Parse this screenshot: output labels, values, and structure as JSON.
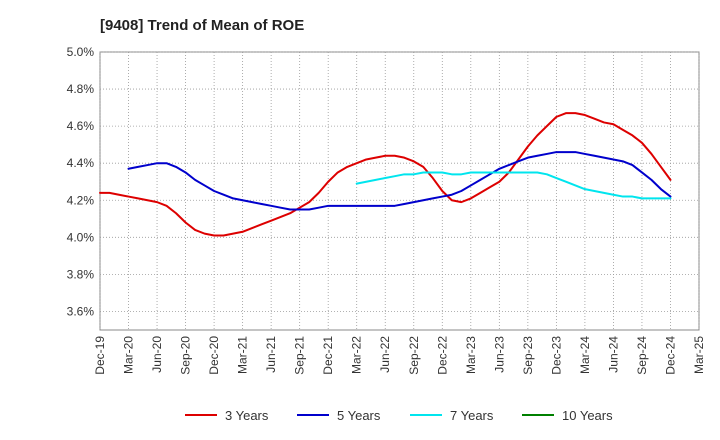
{
  "chart_data": {
    "type": "line",
    "title": "[9408]  Trend of Mean of ROE",
    "xlabel": "",
    "ylabel": "",
    "x_tick_labels": [
      "Dec-19",
      "Mar-20",
      "Jun-20",
      "Sep-20",
      "Dec-20",
      "Mar-21",
      "Jun-21",
      "Sep-21",
      "Dec-21",
      "Mar-22",
      "Jun-22",
      "Sep-22",
      "Dec-22",
      "Mar-23",
      "Jun-23",
      "Sep-23",
      "Dec-23",
      "Mar-24",
      "Jun-24",
      "Sep-24",
      "Dec-24",
      "Mar-25"
    ],
    "y_tick_labels": [
      "3.6%",
      "3.8%",
      "4.0%",
      "4.2%",
      "4.4%",
      "4.6%",
      "4.8%",
      "5.0%"
    ],
    "ylim": [
      3.5,
      5.0
    ],
    "y_unit": "%",
    "grid": true,
    "legend_position": "bottom",
    "series": [
      {
        "name": "3 Years",
        "color": "#dd0000",
        "x": [
          "Dec-19",
          "Jan-20",
          "Feb-20",
          "Mar-20",
          "Apr-20",
          "May-20",
          "Jun-20",
          "Jul-20",
          "Aug-20",
          "Sep-20",
          "Oct-20",
          "Nov-20",
          "Dec-20",
          "Jan-21",
          "Feb-21",
          "Mar-21",
          "Apr-21",
          "May-21",
          "Jun-21",
          "Jul-21",
          "Aug-21",
          "Sep-21",
          "Oct-21",
          "Nov-21",
          "Dec-21",
          "Jan-22",
          "Feb-22",
          "Mar-22",
          "Apr-22",
          "May-22",
          "Jun-22",
          "Jul-22",
          "Aug-22",
          "Sep-22",
          "Oct-22",
          "Nov-22",
          "Dec-22",
          "Jan-23",
          "Feb-23",
          "Mar-23",
          "Apr-23",
          "May-23",
          "Jun-23",
          "Jul-23",
          "Aug-23",
          "Sep-23",
          "Oct-23",
          "Nov-23",
          "Dec-23",
          "Jan-24",
          "Feb-24",
          "Mar-24",
          "Apr-24",
          "May-24",
          "Jun-24",
          "Jul-24",
          "Aug-24",
          "Sep-24",
          "Oct-24",
          "Nov-24",
          "Dec-24"
        ],
        "values": [
          4.24,
          4.24,
          4.23,
          4.22,
          4.21,
          4.2,
          4.19,
          4.17,
          4.13,
          4.08,
          4.04,
          4.02,
          4.01,
          4.01,
          4.02,
          4.03,
          4.05,
          4.07,
          4.09,
          4.11,
          4.13,
          4.16,
          4.19,
          4.24,
          4.3,
          4.35,
          4.38,
          4.4,
          4.42,
          4.43,
          4.44,
          4.44,
          4.43,
          4.41,
          4.38,
          4.32,
          4.25,
          4.2,
          4.19,
          4.21,
          4.24,
          4.27,
          4.3,
          4.35,
          4.42,
          4.49,
          4.55,
          4.6,
          4.65,
          4.67,
          4.67,
          4.66,
          4.64,
          4.62,
          4.61,
          4.58,
          4.55,
          4.51,
          4.45,
          4.38,
          4.31
        ]
      },
      {
        "name": "5 Years",
        "color": "#0000cc",
        "x": [
          "Mar-20",
          "Apr-20",
          "May-20",
          "Jun-20",
          "Jul-20",
          "Aug-20",
          "Sep-20",
          "Oct-20",
          "Nov-20",
          "Dec-20",
          "Jan-21",
          "Feb-21",
          "Mar-21",
          "Apr-21",
          "May-21",
          "Jun-21",
          "Jul-21",
          "Aug-21",
          "Sep-21",
          "Oct-21",
          "Nov-21",
          "Dec-21",
          "Jan-22",
          "Feb-22",
          "Mar-22",
          "Apr-22",
          "May-22",
          "Jun-22",
          "Jul-22",
          "Aug-22",
          "Sep-22",
          "Oct-22",
          "Nov-22",
          "Dec-22",
          "Jan-23",
          "Feb-23",
          "Mar-23",
          "Apr-23",
          "May-23",
          "Jun-23",
          "Jul-23",
          "Aug-23",
          "Sep-23",
          "Oct-23",
          "Nov-23",
          "Dec-23",
          "Jan-24",
          "Feb-24",
          "Mar-24",
          "Apr-24",
          "May-24",
          "Jun-24",
          "Jul-24",
          "Aug-24",
          "Sep-24",
          "Oct-24",
          "Nov-24",
          "Dec-24"
        ],
        "values": [
          4.37,
          4.38,
          4.39,
          4.4,
          4.4,
          4.38,
          4.35,
          4.31,
          4.28,
          4.25,
          4.23,
          4.21,
          4.2,
          4.19,
          4.18,
          4.17,
          4.16,
          4.15,
          4.15,
          4.15,
          4.16,
          4.17,
          4.17,
          4.17,
          4.17,
          4.17,
          4.17,
          4.17,
          4.17,
          4.18,
          4.19,
          4.2,
          4.21,
          4.22,
          4.23,
          4.25,
          4.28,
          4.31,
          4.34,
          4.37,
          4.39,
          4.41,
          4.43,
          4.44,
          4.45,
          4.46,
          4.46,
          4.46,
          4.45,
          4.44,
          4.43,
          4.42,
          4.41,
          4.39,
          4.35,
          4.31,
          4.26,
          4.22
        ]
      },
      {
        "name": "7 Years",
        "color": "#00e5ee",
        "x": [
          "Mar-22",
          "Apr-22",
          "May-22",
          "Jun-22",
          "Jul-22",
          "Aug-22",
          "Sep-22",
          "Oct-22",
          "Nov-22",
          "Dec-22",
          "Jan-23",
          "Feb-23",
          "Mar-23",
          "Apr-23",
          "May-23",
          "Jun-23",
          "Jul-23",
          "Aug-23",
          "Sep-23",
          "Oct-23",
          "Nov-23",
          "Dec-23",
          "Jan-24",
          "Feb-24",
          "Mar-24",
          "Apr-24",
          "May-24",
          "Jun-24",
          "Jul-24",
          "Aug-24",
          "Sep-24",
          "Oct-24",
          "Nov-24",
          "Dec-24"
        ],
        "values": [
          4.29,
          4.3,
          4.31,
          4.32,
          4.33,
          4.34,
          4.34,
          4.35,
          4.35,
          4.35,
          4.34,
          4.34,
          4.35,
          4.35,
          4.35,
          4.35,
          4.35,
          4.35,
          4.35,
          4.35,
          4.34,
          4.32,
          4.3,
          4.28,
          4.26,
          4.25,
          4.24,
          4.23,
          4.22,
          4.22,
          4.21,
          4.21,
          4.21,
          4.21
        ]
      },
      {
        "name": "10 Years",
        "color": "#008000",
        "x": [],
        "values": []
      }
    ]
  }
}
